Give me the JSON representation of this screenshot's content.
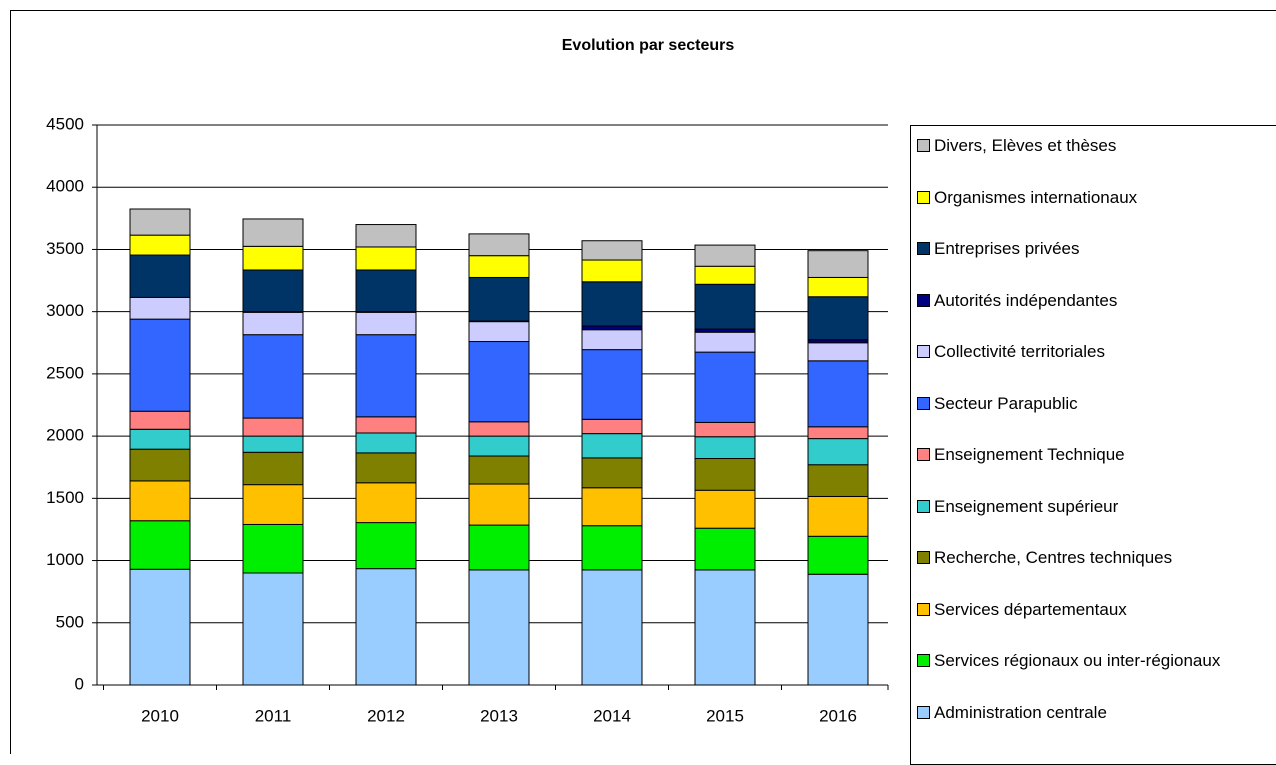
{
  "chart_data": {
    "type": "stacked_bar",
    "title": "Evolution par secteurs",
    "categories": [
      "2010",
      "2011",
      "2012",
      "2013",
      "2014",
      "2015",
      "2016"
    ],
    "series": [
      {
        "name": "Administration centrale",
        "color": "#99ccff",
        "values": [
          930,
          900,
          935,
          925,
          925,
          925,
          890
        ]
      },
      {
        "name": "Services régionaux ou inter-régionaux",
        "color": "#00ee00",
        "values": [
          390,
          390,
          370,
          360,
          355,
          335,
          305
        ]
      },
      {
        "name": "Services départementaux",
        "color": "#ffc000",
        "values": [
          320,
          320,
          320,
          330,
          305,
          305,
          320
        ]
      },
      {
        "name": "Recherche, Centres techniques",
        "color": "#808000",
        "values": [
          255,
          260,
          240,
          225,
          240,
          255,
          255
        ]
      },
      {
        "name": "Enseignement supérieur",
        "color": "#33cccc",
        "values": [
          160,
          130,
          160,
          160,
          195,
          175,
          210
        ]
      },
      {
        "name": "Enseignement Technique",
        "color": "#ff8080",
        "values": [
          145,
          145,
          130,
          115,
          115,
          115,
          95
        ]
      },
      {
        "name": "Secteur Parapublic",
        "color": "#3366ff",
        "values": [
          740,
          670,
          660,
          645,
          560,
          565,
          530
        ]
      },
      {
        "name": "Collectivité territoriales",
        "color": "#ccccff",
        "values": [
          175,
          180,
          180,
          160,
          160,
          160,
          145
        ]
      },
      {
        "name": "Autorités indépendantes",
        "color": "#000080",
        "values": [
          0,
          5,
          5,
          5,
          30,
          25,
          25
        ]
      },
      {
        "name": "Entreprises privées",
        "color": "#003366",
        "values": [
          340,
          335,
          335,
          350,
          355,
          360,
          345
        ]
      },
      {
        "name": "Organismes internationaux",
        "color": "#ffff00",
        "values": [
          160,
          190,
          185,
          175,
          175,
          145,
          155
        ]
      },
      {
        "name": "Divers, Elèves et thèses",
        "color": "#c0c0c0",
        "values": [
          210,
          220,
          180,
          175,
          155,
          170,
          215
        ]
      }
    ],
    "ylim": [
      0,
      4500
    ],
    "yticks": [
      0,
      500,
      1000,
      1500,
      2000,
      2500,
      3000,
      3500,
      4000,
      4500
    ],
    "grid": true,
    "legend": "right"
  }
}
